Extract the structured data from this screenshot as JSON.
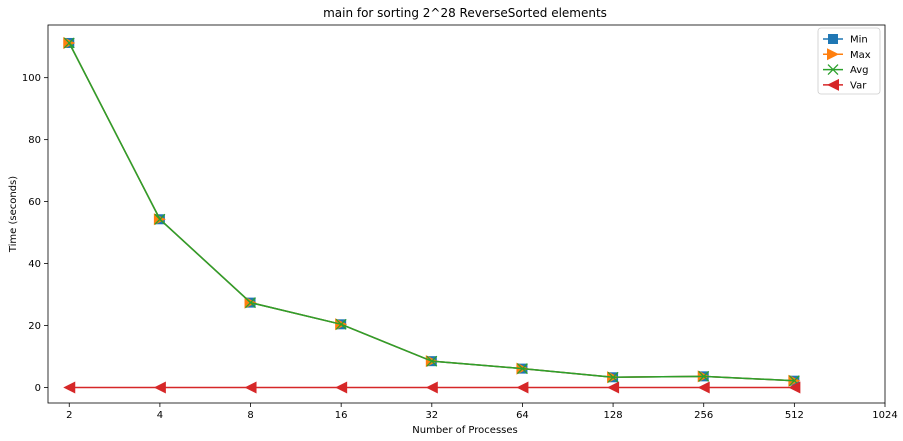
{
  "chart_data": {
    "type": "line",
    "title": "main for sorting 2^28 ReverseSorted elements",
    "xlabel": "Number of Processes",
    "ylabel": "Time (seconds)",
    "x_scale": "log2",
    "x_ticks": [
      "2",
      "4",
      "8",
      "16",
      "32",
      "64",
      "128",
      "256",
      "512",
      "1024"
    ],
    "x": [
      2,
      4,
      8,
      16,
      32,
      64,
      128,
      256,
      512
    ],
    "xlim": [
      1.7,
      1024
    ],
    "ylim": [
      -5,
      117
    ],
    "y_ticks": [
      0,
      20,
      40,
      60,
      80,
      100
    ],
    "grid": false,
    "legend_position": "top-right",
    "series": [
      {
        "name": "Min",
        "color": "#1f77b4",
        "marker": "square",
        "values": [
          111.2,
          54.3,
          27.4,
          20.4,
          8.5,
          6.1,
          3.3,
          3.6,
          2.2
        ]
      },
      {
        "name": "Max",
        "color": "#ff7f0e",
        "marker": "triangle-right",
        "values": [
          111.2,
          54.3,
          27.4,
          20.4,
          8.5,
          6.1,
          3.3,
          3.6,
          2.2
        ]
      },
      {
        "name": "Avg",
        "color": "#2ca02c",
        "marker": "x",
        "values": [
          111.2,
          54.3,
          27.4,
          20.4,
          8.5,
          6.1,
          3.3,
          3.6,
          2.2
        ]
      },
      {
        "name": "Var",
        "color": "#d62728",
        "marker": "triangle-left",
        "values": [
          0,
          0,
          0,
          0,
          0,
          0,
          0,
          0,
          0
        ]
      }
    ]
  }
}
